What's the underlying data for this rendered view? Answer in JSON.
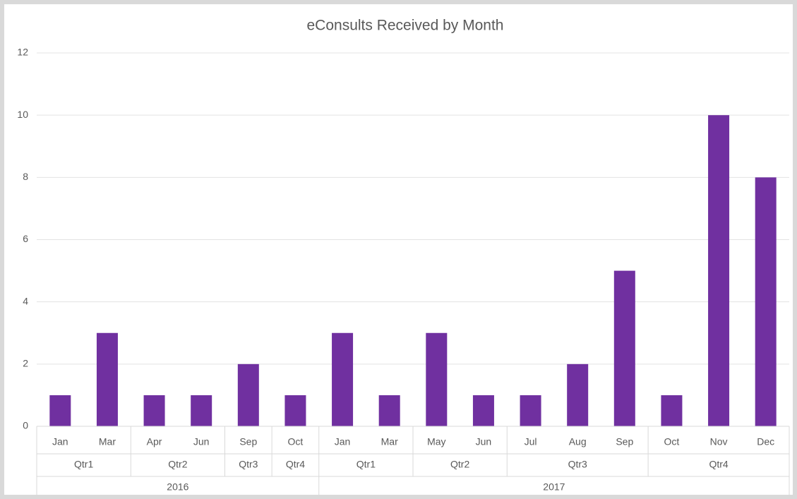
{
  "chart_data": {
    "type": "bar",
    "title": "eConsults Received by Month",
    "years": [
      {
        "label": "2016",
        "quarters": [
          {
            "label": "Qtr1",
            "months": [
              "Jan",
              "Mar"
            ],
            "values": [
              1,
              3
            ]
          },
          {
            "label": "Qtr2",
            "months": [
              "Apr",
              "Jun"
            ],
            "values": [
              1,
              1
            ]
          },
          {
            "label": "Qtr3",
            "months": [
              "Sep"
            ],
            "values": [
              2
            ]
          },
          {
            "label": "Qtr4",
            "months": [
              "Oct"
            ],
            "values": [
              1
            ]
          }
        ]
      },
      {
        "label": "2017",
        "quarters": [
          {
            "label": "Qtr1",
            "months": [
              "Jan",
              "Mar"
            ],
            "values": [
              3,
              1
            ]
          },
          {
            "label": "Qtr2",
            "months": [
              "May",
              "Jun"
            ],
            "values": [
              3,
              1
            ]
          },
          {
            "label": "Qtr3",
            "months": [
              "Jul",
              "Aug",
              "Sep"
            ],
            "values": [
              1,
              2,
              5
            ]
          },
          {
            "label": "Qtr4",
            "months": [
              "Oct",
              "Nov",
              "Dec"
            ],
            "values": [
              1,
              10,
              8
            ]
          }
        ]
      }
    ],
    "color": "#7030a0",
    "ylim": [
      0,
      12
    ],
    "yticks": [
      0,
      2,
      4,
      6,
      8,
      10,
      12
    ],
    "grid": true
  }
}
